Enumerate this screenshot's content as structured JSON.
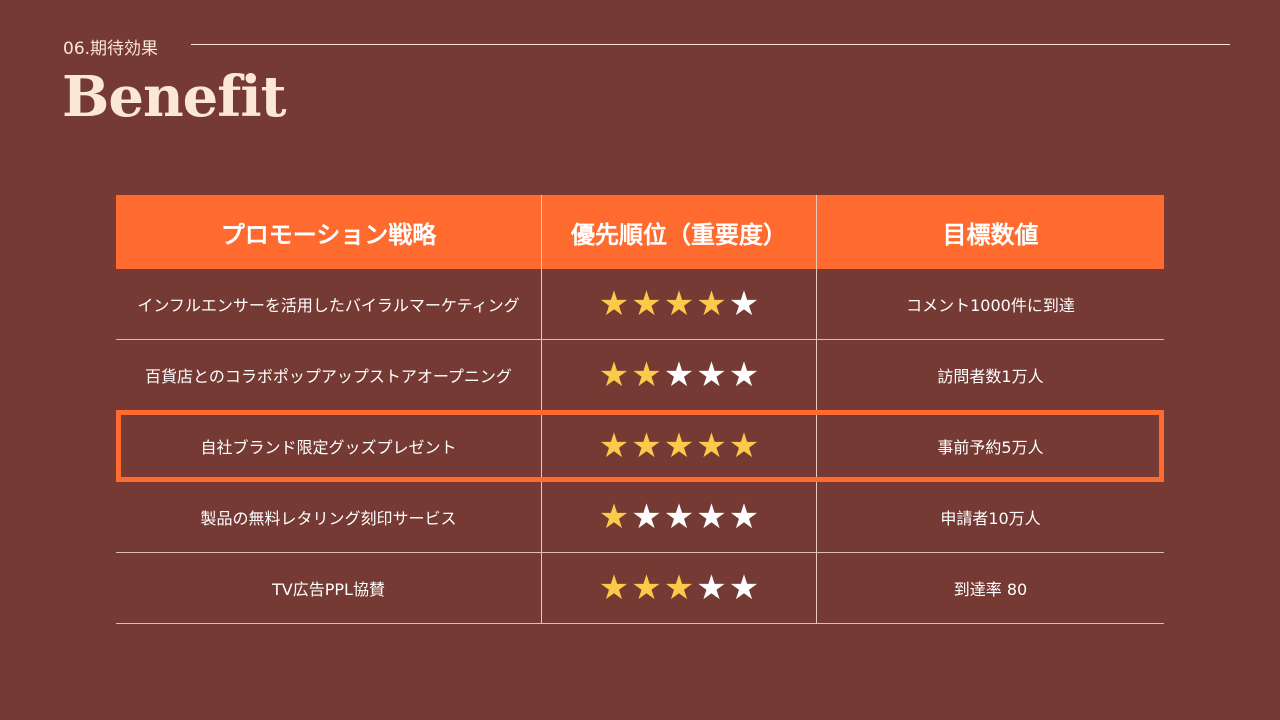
{
  "header": {
    "section": "06.期待効果",
    "title": "Benefit"
  },
  "colors": {
    "background": "#763a34",
    "accent": "#ff6b2e",
    "star_on": "#fcc94a",
    "star_off": "#ffffff"
  },
  "table": {
    "columns": [
      "プロモーション戦略",
      "優先順位（重要度）",
      "目標数値"
    ],
    "rows": [
      {
        "strategy": "インフルエンサーを活用したバイラルマーケティング",
        "rating": 4,
        "max": 5,
        "target": "コメント1000件に到達",
        "highlight": false
      },
      {
        "strategy": "百貨店とのコラボポップアップストアオープニング",
        "rating": 2,
        "max": 5,
        "target": "訪問者数1万人",
        "highlight": false
      },
      {
        "strategy": "自社ブランド限定グッズプレゼント",
        "rating": 5,
        "max": 5,
        "target": "事前予約5万人",
        "highlight": true
      },
      {
        "strategy": "製品の無料レタリング刻印サービス",
        "rating": 1,
        "max": 5,
        "target": "申請者10万人",
        "highlight": false
      },
      {
        "strategy": "TV広告PPL協賛",
        "rating": 3,
        "max": 5,
        "target": "到達率 80",
        "highlight": false
      }
    ]
  }
}
